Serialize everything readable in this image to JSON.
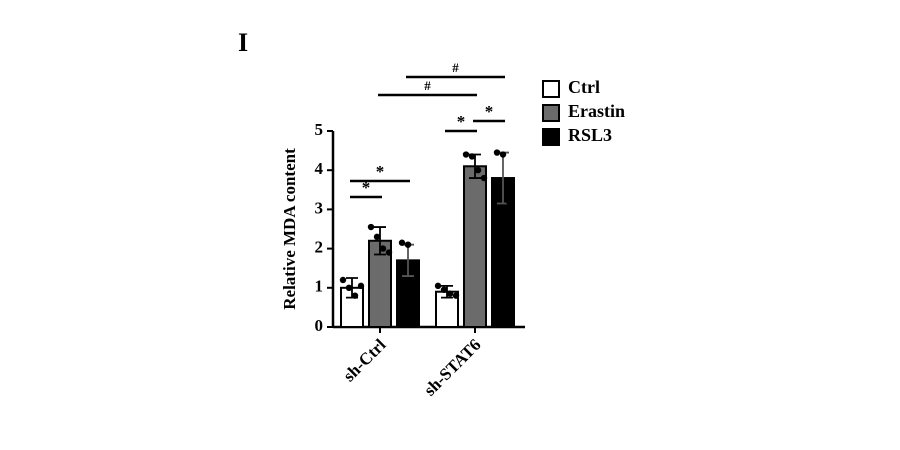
{
  "chart_data": {
    "type": "bar",
    "panel_label": "I",
    "y_label": "Relative MDA content",
    "categories": [
      "sh-Ctrl",
      "sh-STAT6"
    ],
    "series": [
      {
        "name": "Ctrl",
        "color": "#ffffff",
        "values": [
          1.0,
          0.9
        ],
        "errors": [
          0.25,
          0.15
        ],
        "points": [
          [
            1.2,
            1.0,
            0.8,
            1.05
          ],
          [
            1.05,
            0.95,
            0.85,
            0.8
          ]
        ]
      },
      {
        "name": "Erastin",
        "color": "#6b6b6b",
        "values": [
          2.2,
          4.1
        ],
        "errors": [
          0.35,
          0.3
        ],
        "points": [
          [
            2.55,
            2.3,
            2.0,
            1.9
          ],
          [
            4.4,
            4.35,
            4.0,
            3.8
          ]
        ]
      },
      {
        "name": "RSL3",
        "color": "#000000",
        "values": [
          1.7,
          3.8
        ],
        "errors": [
          0.4,
          0.65
        ],
        "points": [
          [
            2.15,
            2.1,
            1.6
          ],
          [
            4.45,
            4.4,
            3.2
          ]
        ]
      }
    ],
    "ylim": [
      0,
      5
    ],
    "yticks": [
      0,
      1,
      2,
      3,
      4,
      5
    ],
    "annotations": [
      {
        "label": "*",
        "category": 0,
        "from": 0,
        "to": 1
      },
      {
        "label": "*",
        "category": 0,
        "from": 0,
        "to": 2
      },
      {
        "label": "*",
        "category": 1,
        "from": 0,
        "to": 1
      },
      {
        "label": "*",
        "category": 1,
        "from": 1,
        "to": 2
      },
      {
        "label": "#",
        "series": 1,
        "from": 0,
        "to": 1
      },
      {
        "label": "#",
        "series": 2,
        "from": 0,
        "to": 1
      }
    ]
  }
}
